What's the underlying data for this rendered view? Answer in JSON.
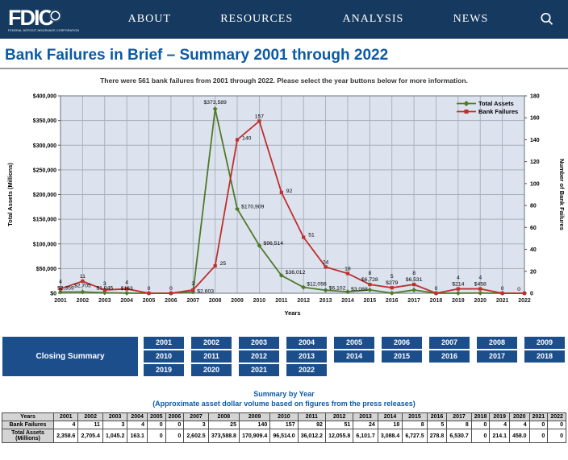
{
  "header": {
    "logo_text": "FDIC",
    "logo_subtext": "FEDERAL DEPOSIT INSURANCE CORPORATION",
    "nav": [
      "ABOUT",
      "RESOURCES",
      "ANALYSIS",
      "NEWS"
    ],
    "search_icon": "magnifier-icon"
  },
  "page": {
    "title": "Bank Failures in Brief – Summary 2001 through 2022",
    "subtitle": "There were 561 bank failures from 2001 through 2022. Please select the year buttons below for more information."
  },
  "chart_data": {
    "type": "line",
    "x": [
      "2001",
      "2002",
      "2003",
      "2004",
      "2005",
      "2006",
      "2007",
      "2008",
      "2009",
      "2010",
      "2011",
      "2012",
      "2013",
      "2014",
      "2015",
      "2016",
      "2017",
      "2018",
      "2019",
      "2020",
      "2021",
      "2022"
    ],
    "xlabel": "Years",
    "ylabel_left": "Total Assets (Millions)",
    "ylabel_right": "Number of Bank Failures",
    "ylim_left": [
      0,
      400000
    ],
    "ytick_step_left": 50000,
    "ylim_right": [
      0,
      180
    ],
    "ytick_step_right": 20,
    "grid": true,
    "legend_position": "top-right",
    "plot_bg": "#dce3ef",
    "grid_color": "#a7aeb9",
    "border_color": "#7e8893",
    "series": [
      {
        "name": "Total Assets",
        "axis": "left",
        "color": "#4e7a28",
        "marker": "diamond",
        "values": [
          2358.6,
          2705.4,
          1045.2,
          163.1,
          0,
          0,
          2602.5,
          373588.8,
          170909.4,
          96514.0,
          36012.2,
          12055.8,
          6101.7,
          3088.4,
          6727.5,
          278.8,
          6530.7,
          0,
          214.1,
          458.0,
          0,
          0
        ],
        "labels": [
          "$2,359",
          "$2,705",
          "$1,045",
          "$163",
          null,
          null,
          "$2,603",
          "$373,589",
          "$170,909",
          "$96,514",
          "$36,012",
          "$12,056",
          "$6,102",
          "$3,088",
          "$6,728",
          "$279",
          "$6,531",
          null,
          "$214",
          "$458",
          null,
          null
        ]
      },
      {
        "name": "Bank Failures",
        "axis": "right",
        "color": "#c02f2c",
        "marker": "square",
        "values": [
          4,
          11,
          3,
          4,
          0,
          0,
          3,
          25,
          140,
          157,
          92,
          51,
          24,
          18,
          8,
          5,
          8,
          0,
          4,
          4,
          0,
          0
        ],
        "labels": [
          "4",
          "11",
          "3",
          "4",
          "0",
          "0",
          "3",
          "25",
          "140",
          "157",
          "92",
          "51",
          "24",
          "18",
          "8",
          "5",
          "8",
          "0",
          "4",
          "4",
          "0",
          "0"
        ]
      }
    ]
  },
  "closing_summary": {
    "label": "Closing Summary",
    "years": [
      "2001",
      "2002",
      "2003",
      "2004",
      "2005",
      "2006",
      "2007",
      "2008",
      "2009",
      "2010",
      "2011",
      "2012",
      "2013",
      "2014",
      "2015",
      "2016",
      "2017",
      "2018",
      "2019",
      "2020",
      "2021",
      "2022"
    ]
  },
  "summary_table": {
    "title": "Summary by Year",
    "subtitle": "(Approximate asset dollar volume based on figures from the press releases)",
    "header": [
      "Years",
      "2001",
      "2002",
      "2003",
      "2004",
      "2005",
      "2006",
      "2007",
      "2008",
      "2009",
      "2010",
      "2011",
      "2012",
      "2013",
      "2014",
      "2015",
      "2016",
      "2017",
      "2018",
      "2019",
      "2020",
      "2021",
      "2022"
    ],
    "rows": [
      {
        "label": "Bank Failures",
        "values": [
          "4",
          "11",
          "3",
          "4",
          "0",
          "0",
          "3",
          "25",
          "140",
          "157",
          "92",
          "51",
          "24",
          "18",
          "8",
          "5",
          "8",
          "0",
          "4",
          "4",
          "0",
          "0"
        ]
      },
      {
        "label": "Total Assets (Millions)",
        "values": [
          "2,358.6",
          "2,705.4",
          "1,045.2",
          "163.1",
          "0",
          "0",
          "2,602.5",
          "373,588.8",
          "170,909.4",
          "96,514.0",
          "36,012.2",
          "12,055.8",
          "6,101.7",
          "3,088.4",
          "6,727.5",
          "278.8",
          "6,530.7",
          "0",
          "214.1",
          "458.0",
          "0",
          "0"
        ]
      }
    ]
  }
}
